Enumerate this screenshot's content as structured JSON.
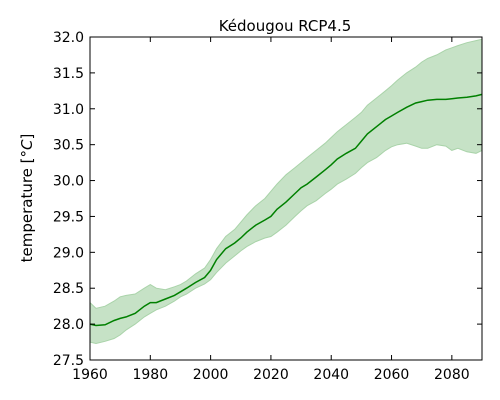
{
  "chart_data": {
    "type": "line",
    "title": "Kédougou RCP4.5",
    "xlabel": "",
    "ylabel_text": "temperature [",
    "ylabel_unit": "°C",
    "ylabel_close": "]",
    "xlim": [
      1960,
      2090
    ],
    "ylim": [
      27.5,
      32.0
    ],
    "xticks": [
      1960,
      1980,
      2000,
      2020,
      2040,
      2060,
      2080
    ],
    "yticks": [
      27.5,
      28.0,
      28.5,
      29.0,
      29.5,
      30.0,
      30.5,
      31.0,
      31.5,
      32.0
    ],
    "grid": false,
    "colors": {
      "line": "#008000",
      "band": "#c6e2c6",
      "band_edge": "#a9d3a9"
    },
    "x": [
      1960,
      1962,
      1965,
      1968,
      1970,
      1972,
      1975,
      1978,
      1980,
      1982,
      1985,
      1988,
      1990,
      1992,
      1995,
      1998,
      2000,
      2002,
      2005,
      2008,
      2010,
      2012,
      2015,
      2018,
      2020,
      2022,
      2025,
      2028,
      2030,
      2032,
      2035,
      2038,
      2040,
      2042,
      2045,
      2048,
      2050,
      2052,
      2055,
      2058,
      2060,
      2062,
      2065,
      2068,
      2070,
      2072,
      2075,
      2078,
      2080,
      2082,
      2085,
      2088,
      2090
    ],
    "mean": [
      28.0,
      27.98,
      27.99,
      28.05,
      28.08,
      28.1,
      28.15,
      28.25,
      28.3,
      28.3,
      28.35,
      28.4,
      28.45,
      28.5,
      28.58,
      28.65,
      28.75,
      28.9,
      29.05,
      29.13,
      29.2,
      29.28,
      29.38,
      29.45,
      29.5,
      29.6,
      29.7,
      29.82,
      29.9,
      29.95,
      30.05,
      30.15,
      30.22,
      30.3,
      30.38,
      30.45,
      30.55,
      30.65,
      30.75,
      30.85,
      30.9,
      30.95,
      31.02,
      31.08,
      31.1,
      31.12,
      31.13,
      31.13,
      31.14,
      31.15,
      31.16,
      31.18,
      31.2
    ],
    "lower": [
      27.75,
      27.73,
      27.76,
      27.8,
      27.85,
      27.92,
      28.0,
      28.1,
      28.15,
      28.2,
      28.25,
      28.32,
      28.38,
      28.42,
      28.5,
      28.56,
      28.62,
      28.72,
      28.85,
      28.95,
      29.02,
      29.08,
      29.15,
      29.2,
      29.22,
      29.28,
      29.38,
      29.5,
      29.58,
      29.65,
      29.72,
      29.82,
      29.88,
      29.95,
      30.02,
      30.1,
      30.18,
      30.25,
      30.32,
      30.42,
      30.47,
      30.5,
      30.52,
      30.48,
      30.45,
      30.45,
      30.5,
      30.48,
      30.42,
      30.45,
      30.4,
      30.38,
      30.42
    ],
    "upper": [
      28.3,
      28.22,
      28.25,
      28.32,
      28.38,
      28.4,
      28.42,
      28.5,
      28.55,
      28.5,
      28.48,
      28.52,
      28.55,
      28.6,
      28.7,
      28.78,
      28.9,
      29.05,
      29.22,
      29.32,
      29.42,
      29.52,
      29.65,
      29.75,
      29.85,
      29.95,
      30.08,
      30.18,
      30.25,
      30.32,
      30.42,
      30.52,
      30.6,
      30.68,
      30.78,
      30.88,
      30.95,
      31.05,
      31.15,
      31.25,
      31.32,
      31.4,
      31.5,
      31.58,
      31.65,
      31.7,
      31.75,
      31.82,
      31.85,
      31.88,
      31.92,
      31.95,
      31.97
    ]
  }
}
